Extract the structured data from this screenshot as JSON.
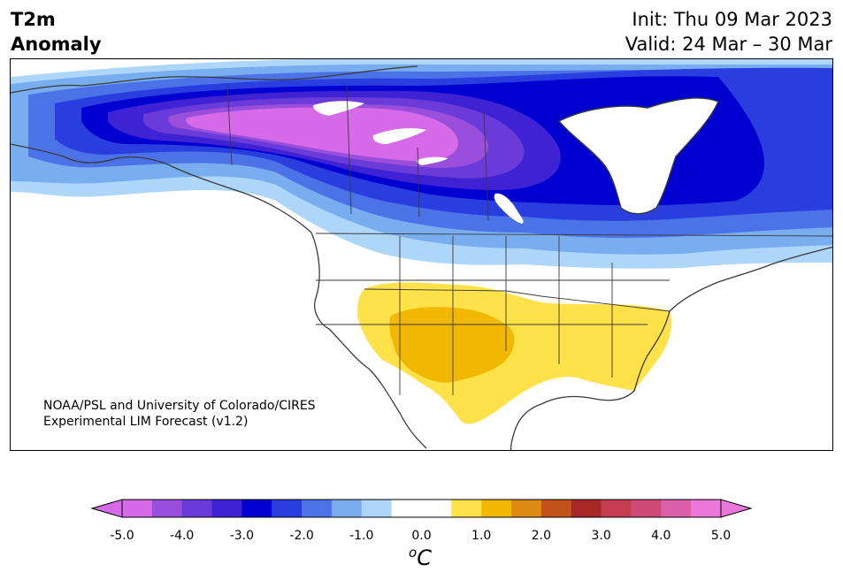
{
  "title": {
    "line1": "T2m",
    "line2": "Anomaly",
    "init": "Init: Thu 09 Mar 2023",
    "valid": "Valid: 24 Mar – 30 Mar"
  },
  "credit": {
    "line1": "NOAA/PSL and University of Colorado/CIRES",
    "line2": "Experimental LIM Forecast (v1.2)"
  },
  "colorbar": {
    "tick_labels": [
      "-5.0",
      "-4.0",
      "-3.0",
      "-2.0",
      "-1.0",
      "0.0",
      "1.0",
      "2.0",
      "3.0",
      "4.0",
      "5.0"
    ],
    "colors": [
      "#d66ae8",
      "#9a4fdc",
      "#6a3bd8",
      "#3f22d4",
      "#0000d0",
      "#2a3ee0",
      "#4c72e8",
      "#78aef0",
      "#aed6f8",
      "#ffffff",
      "#ffffff",
      "#ffe14a",
      "#f2b800",
      "#dd8a12",
      "#c45218",
      "#a82828",
      "#c43c50",
      "#d04a78",
      "#dc60a8",
      "#ea78d8"
    ],
    "unit_base": "C",
    "unit_sup": "o"
  }
}
